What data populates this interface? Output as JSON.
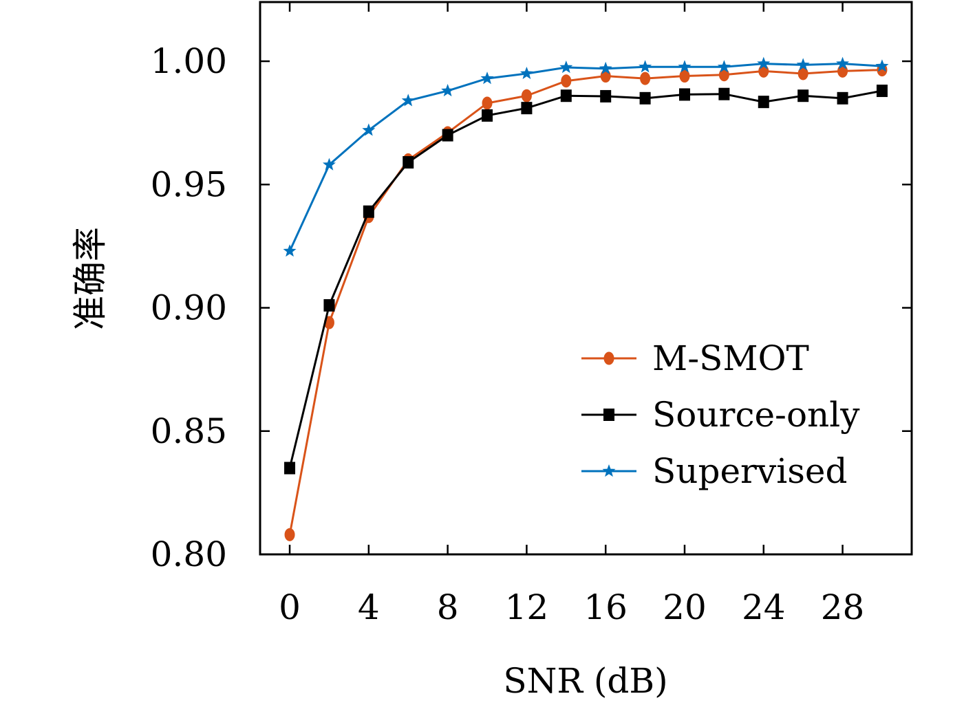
{
  "chart_data": {
    "type": "line",
    "xlabel": "SNR (dB)",
    "ylabel": "准确率",
    "xlim": [
      -1.5,
      31.5
    ],
    "ylim": [
      0.8,
      1.024
    ],
    "xticks": [
      0,
      4,
      8,
      12,
      16,
      20,
      24,
      28
    ],
    "yticks": [
      0.8,
      0.85,
      0.9,
      0.95,
      1.0
    ],
    "ytick_labels": [
      "0.80",
      "0.85",
      "0.90",
      "0.95",
      "1.00"
    ],
    "grid": false,
    "legend_position": "bottom-right",
    "x": [
      0,
      2,
      4,
      6,
      8,
      10,
      12,
      14,
      16,
      18,
      20,
      22,
      24,
      26,
      28,
      30
    ],
    "series": [
      {
        "name": "M-SMOT",
        "color": "#d95319",
        "marker": "circle",
        "values": [
          0.808,
          0.894,
          0.937,
          0.96,
          0.971,
          0.983,
          0.986,
          0.992,
          0.994,
          0.993,
          0.994,
          0.9945,
          0.996,
          0.995,
          0.996,
          0.9965
        ]
      },
      {
        "name": "Source-only",
        "color": "#000000",
        "marker": "square",
        "values": [
          0.835,
          0.901,
          0.939,
          0.959,
          0.97,
          0.978,
          0.981,
          0.986,
          0.9858,
          0.985,
          0.9865,
          0.9867,
          0.9835,
          0.986,
          0.985,
          0.988
        ]
      },
      {
        "name": "Supervised",
        "color": "#0072bd",
        "marker": "star",
        "values": [
          0.923,
          0.958,
          0.972,
          0.984,
          0.988,
          0.993,
          0.995,
          0.9975,
          0.997,
          0.9977,
          0.9977,
          0.9977,
          0.999,
          0.9985,
          0.999,
          0.998
        ]
      }
    ]
  }
}
